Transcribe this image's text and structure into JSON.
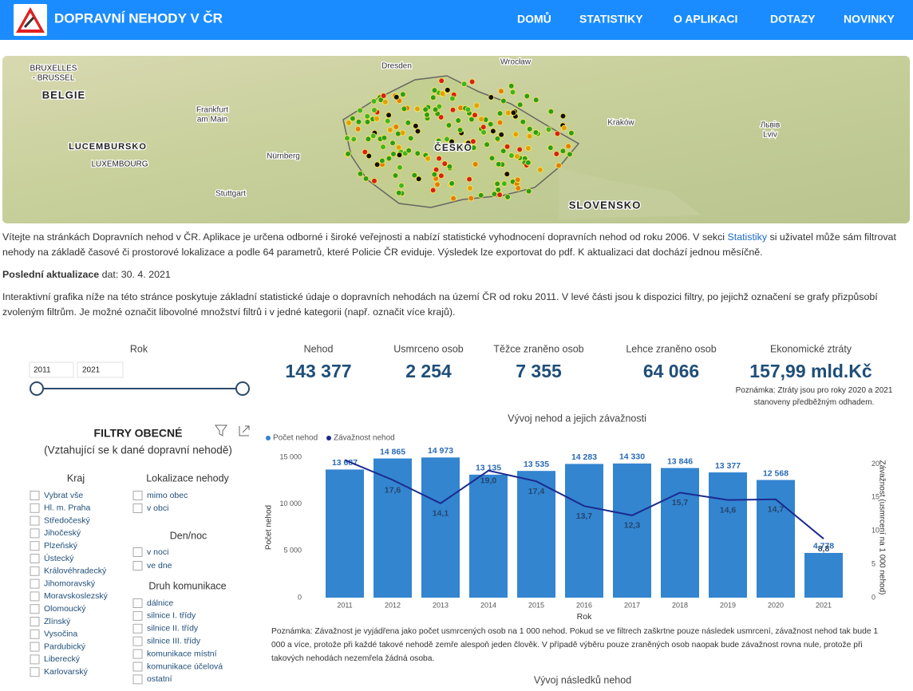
{
  "header": {
    "title": "DOPRAVNÍ NEHODY V ČR",
    "nav": [
      "DOMŮ",
      "STATISTIKY",
      "O APLIKACI",
      "DOTAZY",
      "NOVINKY"
    ]
  },
  "map": {
    "labels": [
      "BRUXELLES",
      "- BRUSSEL",
      "BELGIE",
      "LUCEMBURSKO",
      "LUXEMBOURG",
      "Frankfurt",
      "am Main",
      "Nürnberg",
      "Stuttgart",
      "Dresden",
      "Wrocław",
      "Kraków",
      "Львів",
      "Lviv",
      "ČESKO",
      "SLOVENSKO"
    ]
  },
  "intro": {
    "p1_before": "Vítejte na stránkách Dopravních nehod v ČR. Aplikace je určena odborné i široké veřejnosti a nabízí statistické vyhodnocení dopravních nehod od roku 2006. V sekci ",
    "p1_link": "Statistiky",
    "p1_after": " si uživatel může sám filtrovat nehody na základě časové či prostorové lokalizace a podle 64 parametrů, které Policie ČR eviduje. Výsledek lze exportovat do pdf. K aktualizaci dat dochází jednou měsíčně.",
    "update_label": "Poslední aktualizace",
    "update_value": " dat: 30. 4. 2021",
    "p2": "Interaktivní grafika níže na této stránce poskytuje základní statistické údaje o dopravních nehodách na území ČR od roku 2011. V levé části jsou k dispozici filtry, po jejichž označení se grafy přizpůsobí zvoleným filtrům. Je možné označit libovolné množství filtrů i v jedné kategorii (např. označit více krajů)."
  },
  "year_filter": {
    "label": "Rok",
    "from": "2011",
    "to": "2021"
  },
  "kpis": [
    {
      "label": "Nehod",
      "value": "143 377"
    },
    {
      "label": "Usmrceno osob",
      "value": "2 254"
    },
    {
      "label": "Těžce zraněno osob",
      "value": "7 355"
    },
    {
      "label": "Lehce zraněno osob",
      "value": "64 066"
    },
    {
      "label": "Ekonomické ztráty",
      "value": "157,99 mld.Kč"
    }
  ],
  "kpi_note": "Poznámka: Ztráty jsou pro roky 2020 a 2021 stanoveny předběžným odhadem.",
  "filters": {
    "title": "FILTRY OBECNÉ",
    "subtitle": "(Vztahující se k dané dopravní nehodě)",
    "groups": [
      {
        "title": "Kraj",
        "items": [
          "Vybrat vše",
          "Hl. m. Praha",
          "Středočeský",
          "Jihočeský",
          "Plzeňský",
          "Ústecký",
          "Královéhradecký",
          "Jihomoravský",
          "Moravskoslezský",
          "Olomoucký",
          "Zlínský",
          "Vysočina",
          "Pardubický",
          "Liberecký",
          "Karlovarský"
        ]
      },
      {
        "title": "Lokalizace nehody",
        "items": [
          "mimo obec",
          "v obci"
        ]
      },
      {
        "title": "Den/noc",
        "items": [
          "v noci",
          "ve dne"
        ]
      },
      {
        "title": "Druh komunikace",
        "items": [
          "dálnice",
          "silnice I. třídy",
          "silnice II. třídy",
          "silnice III. třídy",
          "komunikace místní",
          "komunikace účelová",
          "ostatní"
        ]
      }
    ]
  },
  "chart_data": {
    "type": "bar",
    "title": "Vývoj nehod a jejich závažnosti",
    "x_label": "Rok",
    "y_label": "Počet nehod",
    "y2_label": "Závažnost (usmrcení na 1 000 nehod)",
    "categories": [
      "2011",
      "2012",
      "2013",
      "2014",
      "2015",
      "2016",
      "2017",
      "2018",
      "2019",
      "2020",
      "2021"
    ],
    "series": [
      {
        "name": "Počet nehod",
        "type": "bar",
        "color": "#3385d0",
        "values": [
          13687,
          14865,
          14973,
          13135,
          13535,
          14283,
          14330,
          13846,
          13377,
          12568,
          4778
        ],
        "value_labels": [
          "13 687",
          "14 865",
          "14 973",
          "13 135",
          "13 535",
          "14 283",
          "14 330",
          "13 846",
          "13 377",
          "12 568",
          "4 778"
        ]
      },
      {
        "name": "Závažnost nehod",
        "type": "line",
        "axis": "y2",
        "color": "#1b2a8f",
        "values": [
          20.6,
          17.6,
          14.1,
          19.0,
          17.4,
          13.7,
          12.3,
          15.7,
          14.6,
          14.7,
          8.8
        ],
        "value_labels": [
          null,
          "17,6",
          "14,1",
          "19,0",
          "17,4",
          "13,7",
          "12,3",
          "15,7",
          "14,6",
          "14,7",
          "8,8"
        ]
      }
    ],
    "ylim": [
      0,
      15000
    ],
    "yticks": [
      0,
      {
        "value": 5000,
        "label": "5 000"
      },
      {
        "value": 10000,
        "label": "10 000"
      },
      {
        "value": 15000,
        "label": "15 000"
      }
    ],
    "y2lim": [
      0,
      21
    ],
    "y2ticks": [
      0,
      5,
      10,
      15,
      20
    ],
    "legend": "top-left",
    "grid": false
  },
  "chart_note": "Poznámka: Závažnost je vyjádřena jako počet usmrcených osob na 1 000 nehod. Pokud se ve filtrech zaškrtne pouze následek usmrcení, závažnost nehod tak bude 1 000 a více, protože při každé takové nehodě zemře alespoň jeden člověk. V případě výběru pouze zraněných osob naopak bude závažnost rovna nule, protože při takových nehodách nezemřela žádná osoba.",
  "next_title": "Vývoj následků nehod"
}
